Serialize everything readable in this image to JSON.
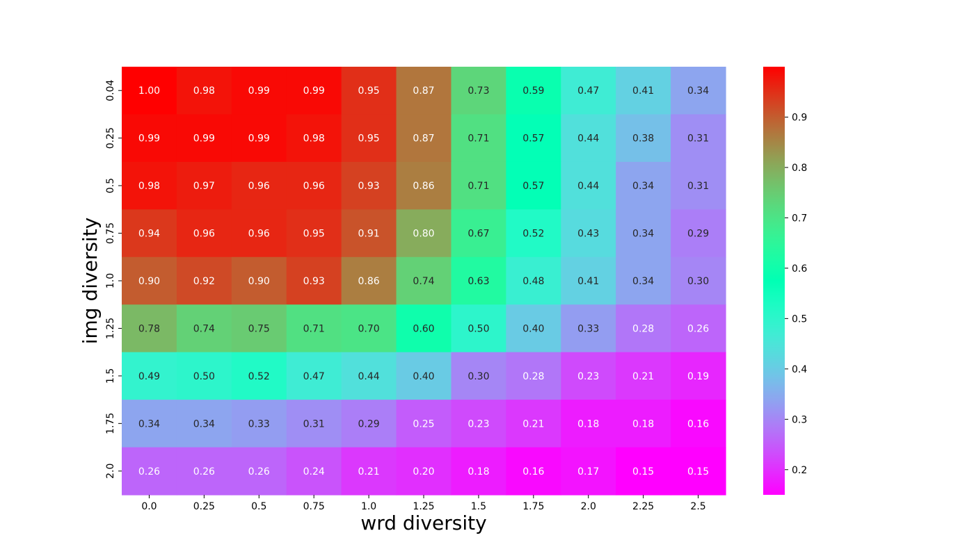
{
  "chart_data": {
    "type": "heatmap",
    "title": "",
    "xlabel": "wrd diversity",
    "ylabel": "img diversity",
    "x": [
      "0.0",
      "0.25",
      "0.5",
      "0.75",
      "1.0",
      "1.25",
      "1.5",
      "1.75",
      "2.0",
      "2.25",
      "2.5"
    ],
    "y": [
      "0.04",
      "0.25",
      "0.5",
      "0.75",
      "1.0",
      "1.25",
      "1.5",
      "1.75",
      "2.0"
    ],
    "values": [
      [
        1.0,
        0.98,
        0.99,
        0.99,
        0.95,
        0.87,
        0.73,
        0.59,
        0.47,
        0.41,
        0.34
      ],
      [
        0.99,
        0.99,
        0.99,
        0.98,
        0.95,
        0.87,
        0.71,
        0.57,
        0.44,
        0.38,
        0.31
      ],
      [
        0.98,
        0.97,
        0.96,
        0.96,
        0.93,
        0.86,
        0.71,
        0.57,
        0.44,
        0.34,
        0.31
      ],
      [
        0.94,
        0.96,
        0.96,
        0.95,
        0.91,
        0.8,
        0.67,
        0.52,
        0.43,
        0.34,
        0.29
      ],
      [
        0.9,
        0.92,
        0.9,
        0.93,
        0.86,
        0.74,
        0.63,
        0.48,
        0.41,
        0.34,
        0.3
      ],
      [
        0.78,
        0.74,
        0.75,
        0.71,
        0.7,
        0.6,
        0.5,
        0.4,
        0.33,
        0.28,
        0.26
      ],
      [
        0.49,
        0.5,
        0.52,
        0.47,
        0.44,
        0.4,
        0.3,
        0.28,
        0.23,
        0.21,
        0.19
      ],
      [
        0.34,
        0.34,
        0.33,
        0.31,
        0.29,
        0.25,
        0.23,
        0.21,
        0.18,
        0.18,
        0.16
      ],
      [
        0.26,
        0.26,
        0.26,
        0.24,
        0.21,
        0.2,
        0.18,
        0.16,
        0.17,
        0.15,
        0.15
      ]
    ],
    "colormap": "rainbow",
    "vmin": 0.15,
    "vmax": 1.0,
    "colorbar_ticks": [
      0.2,
      0.3,
      0.4,
      0.5,
      0.6,
      0.7,
      0.8,
      0.9
    ],
    "annotation_format": "2 decimals",
    "grid": false,
    "colorbar_position": "right"
  }
}
